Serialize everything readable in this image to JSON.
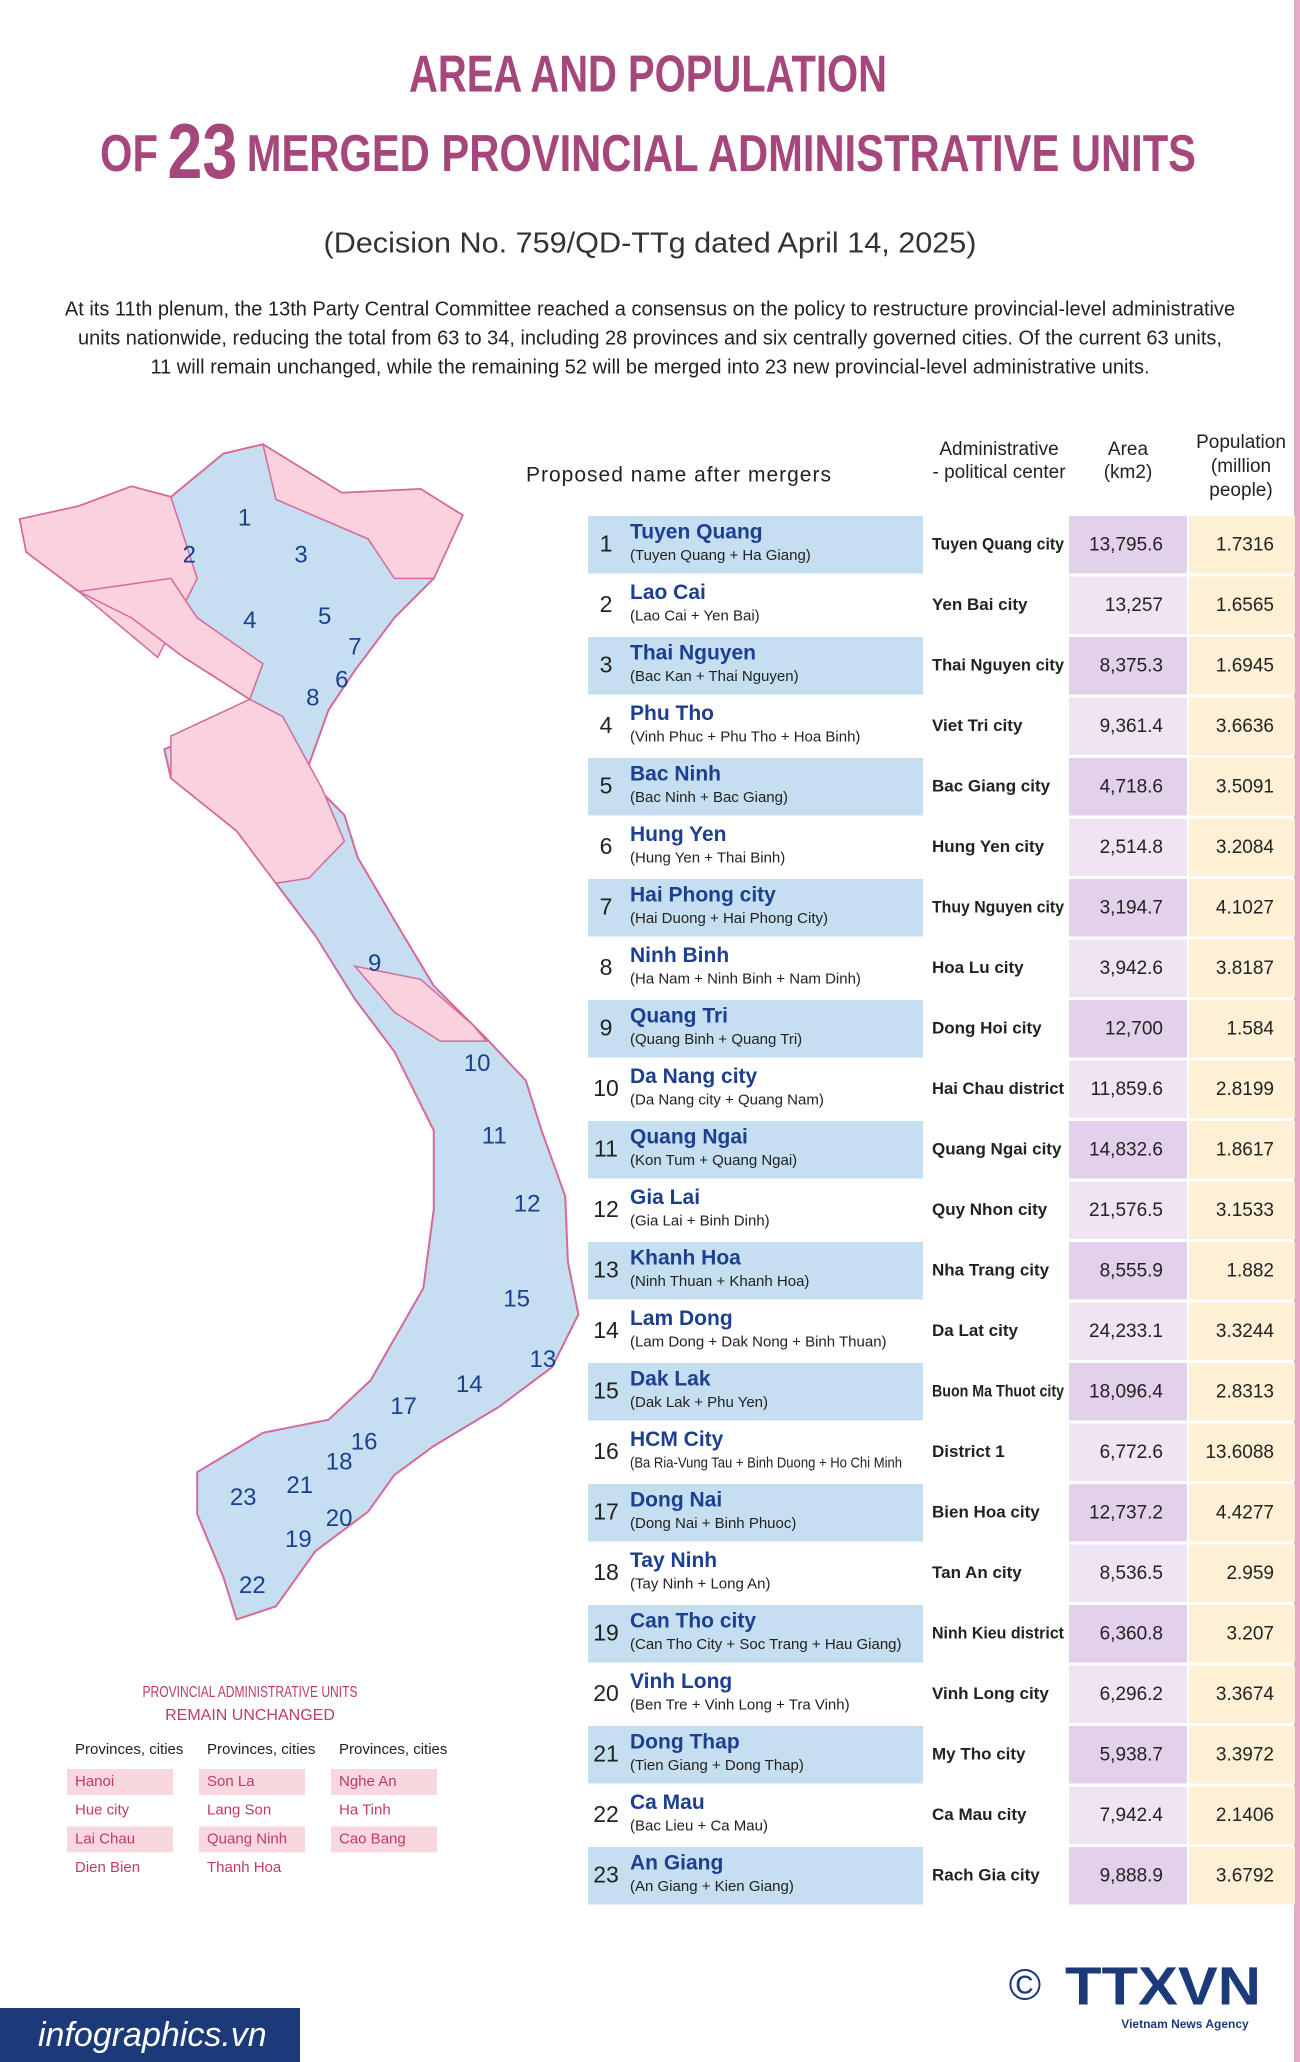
{
  "title": {
    "line1": "AREA AND POPULATION",
    "line2_prefix": "OF",
    "line2_number": "23",
    "line2_rest": "MERGED PROVINCIAL ADMINISTRATIVE UNITS"
  },
  "subtitle": "(Decision No. 759/QD-TTg dated April 14, 2025)",
  "intro": [
    "At its 11th plenum, the 13th Party Central Committee reached a consensus on the policy to restructure provincial-level administrative",
    "units nationwide, reducing the total from 63 to 34, including 28 provinces and six centrally governed cities. Of the current 63 units,",
    "11 will remain unchanged, while the remaining 52 will be merged into 23 new provincial-level administrative units."
  ],
  "table": {
    "headers": {
      "name": "Proposed name after mergers",
      "center": [
        "Administrative",
        "- political center"
      ],
      "area": [
        "Area",
        "(km2)"
      ],
      "population": [
        "Population",
        "(million",
        "people)"
      ]
    },
    "rows": [
      {
        "number": 1,
        "name": "Tuyen Quang",
        "merged": "(Tuyen Quang + Ha Giang)",
        "center": "Tuyen Quang city",
        "area": "13,795.6",
        "population": "1.7316"
      },
      {
        "number": 2,
        "name": "Lao Cai",
        "merged": "(Lao Cai + Yen Bai)",
        "center": "Yen Bai city",
        "area": "13,257",
        "population": "1.6565"
      },
      {
        "number": 3,
        "name": "Thai Nguyen",
        "merged": "(Bac Kan + Thai Nguyen)",
        "center": "Thai Nguyen city",
        "area": "8,375.3",
        "population": "1.6945"
      },
      {
        "number": 4,
        "name": "Phu Tho",
        "merged": "(Vinh Phuc + Phu Tho + Hoa Binh)",
        "center": "Viet Tri city",
        "area": "9,361.4",
        "population": "3.6636"
      },
      {
        "number": 5,
        "name": "Bac Ninh",
        "merged": "(Bac Ninh + Bac Giang)",
        "center": "Bac Giang city",
        "area": "4,718.6",
        "population": "3.5091"
      },
      {
        "number": 6,
        "name": "Hung Yen",
        "merged": "(Hung Yen + Thai Binh)",
        "center": "Hung Yen city",
        "area": "2,514.8",
        "population": "3.2084"
      },
      {
        "number": 7,
        "name": "Hai Phong city",
        "merged": "(Hai Duong + Hai Phong City)",
        "center": "Thuy Nguyen city",
        "area": "3,194.7",
        "population": "4.1027"
      },
      {
        "number": 8,
        "name": "Ninh Binh",
        "merged": "(Ha Nam + Ninh Binh + Nam Dinh)",
        "center": "Hoa Lu city",
        "area": "3,942.6",
        "population": "3.8187"
      },
      {
        "number": 9,
        "name": "Quang Tri",
        "merged": "(Quang Binh + Quang Tri)",
        "center": "Dong Hoi city",
        "area": "12,700",
        "population": "1.584"
      },
      {
        "number": 10,
        "name": "Da Nang city",
        "merged": "(Da Nang city + Quang Nam)",
        "center": "Hai Chau district",
        "area": "11,859.6",
        "population": "2.8199"
      },
      {
        "number": 11,
        "name": "Quang Ngai",
        "merged": "(Kon Tum + Quang Ngai)",
        "center": "Quang Ngai city",
        "area": "14,832.6",
        "population": "1.8617"
      },
      {
        "number": 12,
        "name": "Gia Lai",
        "merged": "(Gia Lai + Binh Dinh)",
        "center": "Quy Nhon city",
        "area": "21,576.5",
        "population": "3.1533"
      },
      {
        "number": 13,
        "name": "Khanh Hoa",
        "merged": "(Ninh Thuan + Khanh Hoa)",
        "center": "Nha Trang city",
        "area": "8,555.9",
        "population": "1.882"
      },
      {
        "number": 14,
        "name": "Lam Dong",
        "merged": "(Lam Dong + Dak Nong + Binh Thuan)",
        "center": "Da Lat city",
        "area": "24,233.1",
        "population": "3.3244"
      },
      {
        "number": 15,
        "name": "Dak Lak",
        "merged": "(Dak Lak + Phu Yen)",
        "center": "Buon Ma Thuot city",
        "area": "18,096.4",
        "population": "2.8313"
      },
      {
        "number": 16,
        "name": "HCM City",
        "merged": "(Ba Ria-Vung Tau + Binh Duong + Ho Chi Minh",
        "center": "District 1",
        "area": "6,772.6",
        "population": "13.6088"
      },
      {
        "number": 17,
        "name": "Dong Nai",
        "merged": "(Dong Nai + Binh Phuoc)",
        "center": "Bien Hoa city",
        "area": "12,737.2",
        "population": "4.4277"
      },
      {
        "number": 18,
        "name": "Tay Ninh",
        "merged": "(Tay Ninh + Long An)",
        "center": "Tan An city",
        "area": "8,536.5",
        "population": "2.959"
      },
      {
        "number": 19,
        "name": "Can Tho city",
        "merged": "(Can Tho City + Soc Trang + Hau Giang)",
        "center": "Ninh Kieu district",
        "area": "6,360.8",
        "population": "3.207"
      },
      {
        "number": 20,
        "name": "Vinh Long",
        "merged": "(Ben Tre + Vinh Long + Tra Vinh)",
        "center": "Vinh Long city",
        "area": "6,296.2",
        "population": "3.3674"
      },
      {
        "number": 21,
        "name": "Dong Thap",
        "merged": "(Tien Giang + Dong Thap)",
        "center": "My Tho city",
        "area": "5,938.7",
        "population": "3.3972"
      },
      {
        "number": 22,
        "name": "Ca Mau",
        "merged": "(Bac Lieu + Ca Mau)",
        "center": "Ca Mau city",
        "area": "7,942.4",
        "population": "2.1406"
      },
      {
        "number": 23,
        "name": "An Giang",
        "merged": "(An Giang + Kien Giang)",
        "center": "Rach Gia city",
        "area": "9,888.9",
        "population": "3.6792"
      }
    ]
  },
  "unchanged": {
    "title": [
      "PROVINCIAL ADMINISTRATIVE UNITS",
      "REMAIN UNCHANGED"
    ],
    "columns": [
      {
        "header": "Provinces, cities",
        "items": [
          "Hanoi",
          "Hue city",
          "Lai Chau",
          "Dien Bien"
        ]
      },
      {
        "header": "Provinces, cities",
        "items": [
          "Son La",
          "Lang Son",
          "Quang Ninh",
          "Thanh Hoa"
        ]
      },
      {
        "header": "Provinces, cities",
        "items": [
          "Nghe An",
          "Ha Tinh",
          "Cao Bang"
        ]
      }
    ]
  },
  "footer": {
    "site": "infographics.vn",
    "copyright": "©",
    "logo": "TTXVN",
    "agency": "Vietnam News Agency"
  }
}
